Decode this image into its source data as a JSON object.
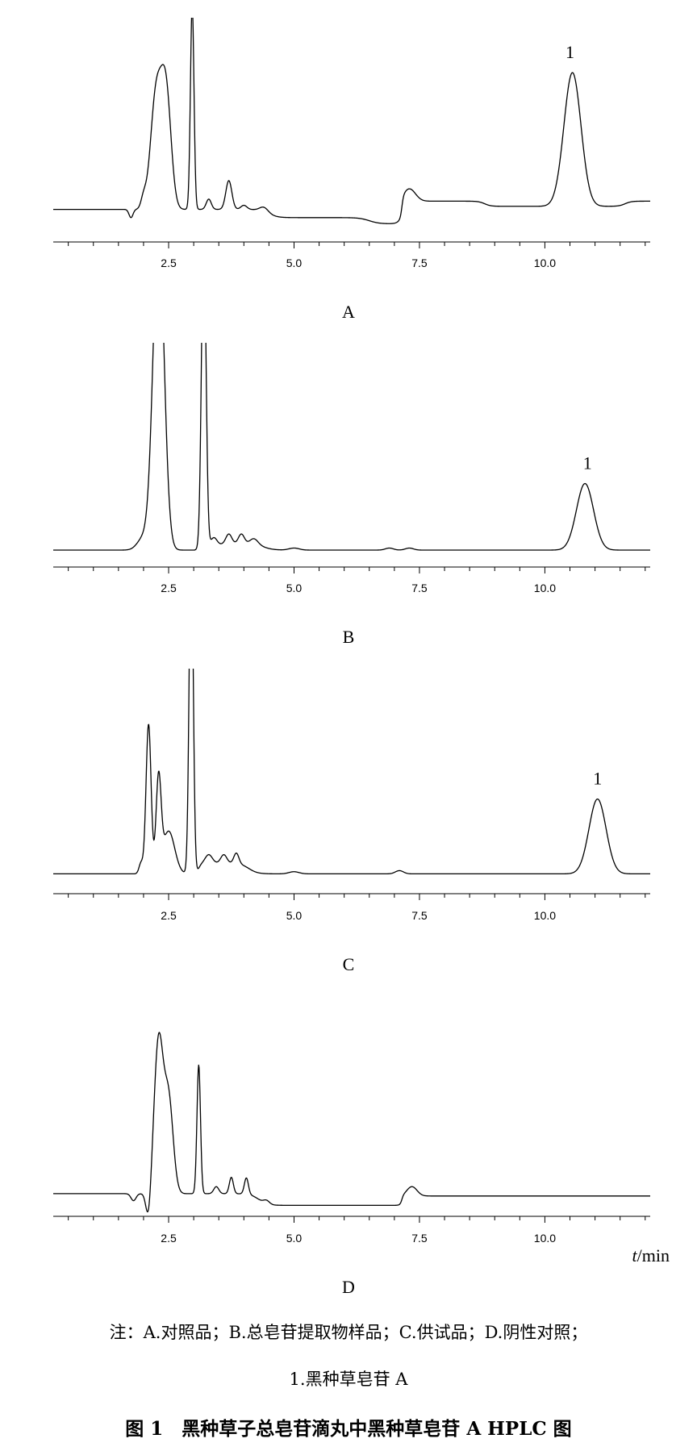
{
  "chart_data": [
    {
      "type": "line",
      "panel": "A",
      "xlabel": "",
      "ylabel": "",
      "xlim": [
        0.2,
        12.1
      ],
      "xticks": [
        "2.5",
        "5.0",
        "7.5",
        "10.0"
      ],
      "tick_values": [
        2.5,
        5.0,
        7.5,
        10.0
      ],
      "baseline_level": 0.08,
      "peaks": [
        {
          "rt": 1.75,
          "height": -0.04,
          "width": 0.04
        },
        {
          "rt": 2.0,
          "height": 0.05,
          "width": 0.05
        },
        {
          "rt": 2.25,
          "height": 0.55,
          "width": 0.11
        },
        {
          "rt": 2.45,
          "height": 0.55,
          "width": 0.1
        },
        {
          "rt": 2.97,
          "height": 1.0,
          "width": 0.035
        },
        {
          "rt": 3.3,
          "height": 0.05,
          "width": 0.05
        },
        {
          "rt": 3.7,
          "height": 0.14,
          "width": 0.06
        },
        {
          "rt": 4.0,
          "height": 0.02,
          "width": 0.06
        },
        {
          "rt": 4.4,
          "height": 0.02,
          "width": 0.08
        },
        {
          "rt": 7.3,
          "height": 0.06,
          "width": 0.12
        },
        {
          "rt": 10.55,
          "height": 0.65,
          "width": 0.17
        }
      ],
      "steps": [
        {
          "at": 4.5,
          "delta": -0.04,
          "width": 0.35
        },
        {
          "at": 6.5,
          "delta": -0.03,
          "width": 0.4
        },
        {
          "at": 7.15,
          "delta": 0.11,
          "width": 0.07
        },
        {
          "at": 8.8,
          "delta": -0.025,
          "width": 0.25
        },
        {
          "at": 11.6,
          "delta": 0.025,
          "width": 0.25
        }
      ],
      "annotations": [
        {
          "text": "1",
          "x": 10.5
        }
      ]
    },
    {
      "type": "line",
      "panel": "B",
      "xlabel": "",
      "ylabel": "",
      "xlim": [
        0.2,
        12.1
      ],
      "xticks": [
        "2.5",
        "5.0",
        "7.5",
        "10.0"
      ],
      "tick_values": [
        2.5,
        5.0,
        7.5,
        10.0
      ],
      "baseline_level": 0.04,
      "clipped": true,
      "peaks": [
        {
          "rt": 2.0,
          "height": 0.06,
          "width": 0.12
        },
        {
          "rt": 2.3,
          "height": 1.6,
          "width": 0.11
        },
        {
          "rt": 3.2,
          "height": 1.6,
          "width": 0.045
        },
        {
          "rt": 3.4,
          "height": 0.06,
          "width": 0.07
        },
        {
          "rt": 3.7,
          "height": 0.05,
          "width": 0.06
        },
        {
          "rt": 3.95,
          "height": 0.05,
          "width": 0.06
        },
        {
          "rt": 4.2,
          "height": 0.03,
          "width": 0.08
        },
        {
          "rt": 5.0,
          "height": 0.01,
          "width": 0.1
        },
        {
          "rt": 6.9,
          "height": 0.01,
          "width": 0.08
        },
        {
          "rt": 7.3,
          "height": 0.01,
          "width": 0.08
        },
        {
          "rt": 10.8,
          "height": 0.33,
          "width": 0.17
        }
      ],
      "steps": [
        {
          "at": 3.5,
          "delta": 0.03,
          "width": 0.15
        },
        {
          "at": 4.4,
          "delta": -0.03,
          "width": 0.4
        }
      ],
      "annotations": [
        {
          "text": "1",
          "x": 10.85
        }
      ]
    },
    {
      "type": "line",
      "panel": "C",
      "xlabel": "",
      "ylabel": "",
      "xlim": [
        0.2,
        12.1
      ],
      "xticks": [
        "2.5",
        "5.0",
        "7.5",
        "10.0"
      ],
      "tick_values": [
        2.5,
        5.0,
        7.5,
        10.0
      ],
      "baseline_level": 0.04,
      "clipped": true,
      "peaks": [
        {
          "rt": 1.95,
          "height": 0.05,
          "width": 0.04
        },
        {
          "rt": 2.1,
          "height": 0.7,
          "width": 0.05
        },
        {
          "rt": 2.3,
          "height": 0.43,
          "width": 0.05
        },
        {
          "rt": 2.5,
          "height": 0.2,
          "width": 0.12
        },
        {
          "rt": 2.95,
          "height": 1.6,
          "width": 0.04
        },
        {
          "rt": 3.3,
          "height": 0.04,
          "width": 0.07
        },
        {
          "rt": 3.6,
          "height": 0.04,
          "width": 0.06
        },
        {
          "rt": 3.85,
          "height": 0.05,
          "width": 0.05
        },
        {
          "rt": 5.0,
          "height": 0.01,
          "width": 0.1
        },
        {
          "rt": 7.1,
          "height": 0.015,
          "width": 0.08
        },
        {
          "rt": 11.05,
          "height": 0.35,
          "width": 0.17
        }
      ],
      "steps": [
        {
          "at": 3.1,
          "delta": 0.05,
          "width": 0.12
        },
        {
          "at": 4.1,
          "delta": -0.05,
          "width": 0.35
        }
      ],
      "annotations": [
        {
          "text": "1",
          "x": 11.05
        }
      ]
    },
    {
      "type": "line",
      "panel": "D",
      "xlabel": "t/min",
      "ylabel": "",
      "xlim": [
        0.2,
        12.1
      ],
      "xticks": [
        "2.5",
        "5.0",
        "7.5",
        "10.0"
      ],
      "tick_values": [
        2.5,
        5.0,
        7.5,
        10.0
      ],
      "baseline_level": 0.09,
      "peaks": [
        {
          "rt": 1.8,
          "height": -0.03,
          "width": 0.05
        },
        {
          "rt": 2.1,
          "height": -0.12,
          "width": 0.05
        },
        {
          "rt": 2.3,
          "height": 0.65,
          "width": 0.09
        },
        {
          "rt": 2.5,
          "height": 0.4,
          "width": 0.09
        },
        {
          "rt": 3.1,
          "height": 0.55,
          "width": 0.035
        },
        {
          "rt": 3.45,
          "height": 0.03,
          "width": 0.05
        },
        {
          "rt": 3.75,
          "height": 0.07,
          "width": 0.04
        },
        {
          "rt": 4.05,
          "height": 0.07,
          "width": 0.04
        },
        {
          "rt": 4.45,
          "height": 0.015,
          "width": 0.06
        },
        {
          "rt": 7.35,
          "height": 0.04,
          "width": 0.1
        }
      ],
      "steps": [
        {
          "at": 4.3,
          "delta": -0.05,
          "width": 0.35
        },
        {
          "at": 7.15,
          "delta": 0.04,
          "width": 0.07
        }
      ],
      "annotations": []
    }
  ],
  "panel_labels": [
    "A",
    "B",
    "C",
    "D"
  ],
  "notes": {
    "line1": "注：A.对照品；B.总皂苷提取物样品；C.供试品；D.阴性对照；",
    "line2": "1.黑种草皂苷 A"
  },
  "figure_caption": "图 1　黑种草子总皂苷滴丸中黑种草皂苷 A HPLC 图"
}
